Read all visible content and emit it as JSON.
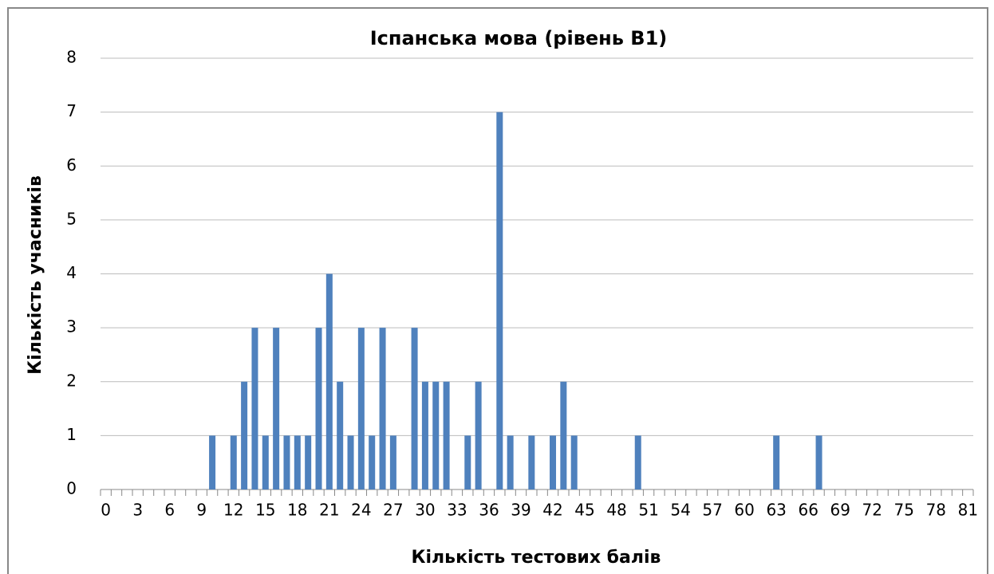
{
  "chart_data": {
    "type": "bar",
    "title": "Іспанська мова (рівень В1)",
    "x_label": "Кількість тестових балів",
    "y_label": "Кількість учасників",
    "categories": [
      "0",
      null,
      null,
      "3",
      null,
      null,
      "6",
      null,
      null,
      "9",
      null,
      null,
      "12",
      null,
      null,
      "15",
      null,
      null,
      "18",
      null,
      null,
      "21",
      null,
      null,
      "24",
      null,
      null,
      "27",
      null,
      null,
      "30",
      null,
      null,
      "33",
      null,
      null,
      "36",
      null,
      null,
      "39",
      null,
      null,
      "42",
      null,
      null,
      "45",
      null,
      null,
      "48",
      null,
      null,
      "51",
      null,
      null,
      "54",
      null,
      null,
      "57",
      null,
      null,
      "60",
      null,
      null,
      "63",
      null,
      null,
      "66",
      null,
      null,
      "69",
      null,
      null,
      "72",
      null,
      null,
      "75",
      null,
      null,
      "78",
      null,
      null,
      "81"
    ],
    "values": [
      0,
      0,
      0,
      0,
      0,
      0,
      0,
      0,
      0,
      0,
      1,
      0,
      1,
      2,
      3,
      1,
      3,
      1,
      1,
      1,
      3,
      4,
      2,
      1,
      3,
      1,
      3,
      1,
      0,
      3,
      2,
      2,
      2,
      0,
      1,
      2,
      0,
      7,
      1,
      0,
      1,
      0,
      1,
      2,
      1,
      0,
      0,
      0,
      0,
      0,
      1,
      0,
      0,
      0,
      0,
      0,
      0,
      0,
      0,
      0,
      0,
      0,
      0,
      1,
      0,
      0,
      0,
      1,
      0,
      0,
      0,
      0,
      0,
      0,
      0,
      0,
      0,
      0,
      0,
      0,
      0,
      0
    ],
    "color": "#4f81bd",
    "ylim": [
      0,
      8
    ],
    "yticks": [
      0,
      1,
      2,
      3,
      4,
      5,
      6,
      7,
      8
    ],
    "grid": true
  }
}
